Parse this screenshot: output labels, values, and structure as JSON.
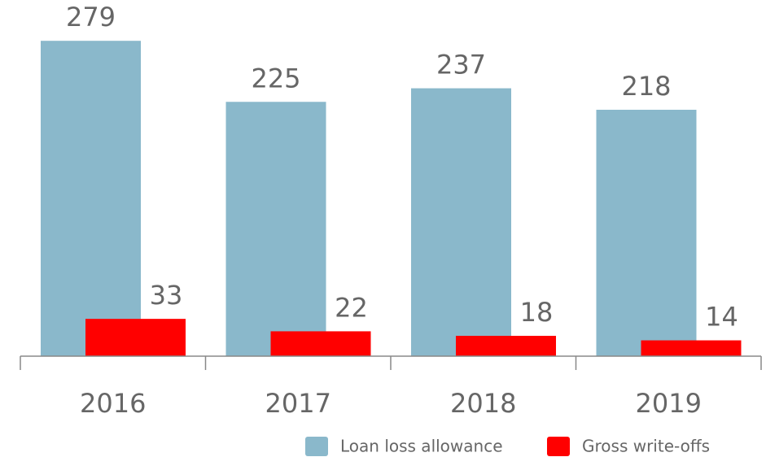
{
  "chart_data": {
    "type": "bar",
    "categories": [
      "2016",
      "2017",
      "2018",
      "2019"
    ],
    "series": [
      {
        "name": "Loan loss allowance",
        "color": "#8ab8cb",
        "values": [
          279,
          225,
          237,
          218
        ]
      },
      {
        "name": "Gross write-offs",
        "color": "#ff0000",
        "values": [
          33,
          22,
          18,
          14
        ]
      }
    ],
    "ylim": [
      0,
      300
    ]
  }
}
